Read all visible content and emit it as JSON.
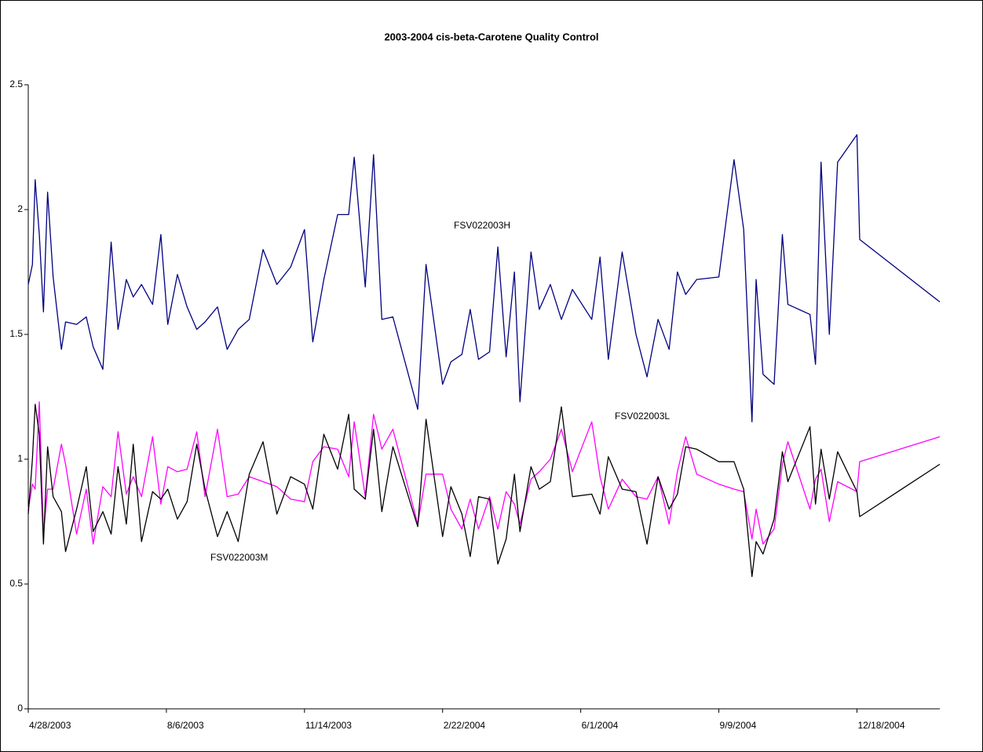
{
  "chart_data": {
    "type": "line",
    "title": "2003-2004 cis-beta-Carotene Quality Control",
    "x": [
      "2003-04-28",
      "2003-05-01",
      "2003-05-03",
      "2003-05-06",
      "2003-05-09",
      "2003-05-12",
      "2003-05-16",
      "2003-05-22",
      "2003-05-25",
      "2003-06-02",
      "2003-06-09",
      "2003-06-14",
      "2003-06-21",
      "2003-06-27",
      "2003-07-02",
      "2003-07-08",
      "2003-07-13",
      "2003-07-19",
      "2003-07-27",
      "2003-08-02",
      "2003-08-07",
      "2003-08-14",
      "2003-08-21",
      "2003-08-28",
      "2003-09-03",
      "2003-09-12",
      "2003-09-19",
      "2003-09-27",
      "2003-10-05",
      "2003-10-15",
      "2003-10-25",
      "2003-11-04",
      "2003-11-14",
      "2003-11-20",
      "2003-11-28",
      "2003-12-08",
      "2003-12-16",
      "2003-12-20",
      "2003-12-28",
      "2004-01-03",
      "2004-01-09",
      "2004-01-17",
      "2004-02-04",
      "2004-02-10",
      "2004-02-22",
      "2004-02-28",
      "2004-03-07",
      "2004-03-13",
      "2004-03-19",
      "2004-03-27",
      "2004-04-02",
      "2004-04-08",
      "2004-04-14",
      "2004-04-18",
      "2004-04-26",
      "2004-05-02",
      "2004-05-10",
      "2004-05-18",
      "2004-05-26",
      "2004-06-09",
      "2004-06-15",
      "2004-06-21",
      "2004-07-01",
      "2004-07-11",
      "2004-07-19",
      "2004-07-27",
      "2004-08-04",
      "2004-08-10",
      "2004-08-16",
      "2004-08-24",
      "2004-09-09",
      "2004-09-20",
      "2004-09-27",
      "2004-10-03",
      "2004-10-06",
      "2004-10-11",
      "2004-10-19",
      "2004-10-25",
      "2004-10-29",
      "2004-11-14",
      "2004-11-18",
      "2004-11-22",
      "2004-11-28",
      "2004-12-04",
      "2004-12-18",
      "2004-12-20",
      "2005-02-16"
    ],
    "series": [
      {
        "name": "FSV022003H",
        "color": "#000080",
        "values": [
          1.7,
          1.78,
          2.12,
          1.9,
          1.59,
          2.07,
          1.73,
          1.44,
          1.55,
          1.54,
          1.57,
          1.45,
          1.36,
          1.87,
          1.52,
          1.72,
          1.65,
          1.7,
          1.62,
          1.9,
          1.54,
          1.74,
          1.61,
          1.52,
          1.55,
          1.61,
          1.44,
          1.52,
          1.56,
          1.84,
          1.7,
          1.77,
          1.92,
          1.47,
          1.72,
          1.98,
          1.98,
          2.21,
          1.69,
          2.22,
          1.56,
          1.57,
          1.2,
          1.78,
          1.3,
          1.39,
          1.42,
          1.6,
          1.4,
          1.43,
          1.85,
          1.41,
          1.75,
          1.23,
          1.83,
          1.6,
          1.7,
          1.56,
          1.68,
          1.56,
          1.81,
          1.4,
          1.83,
          1.5,
          1.33,
          1.56,
          1.44,
          1.75,
          1.66,
          1.72,
          1.73,
          2.2,
          1.92,
          1.15,
          1.72,
          1.34,
          1.3,
          1.9,
          1.62,
          1.58,
          1.38,
          2.19,
          1.5,
          2.19,
          2.3,
          1.88,
          1.63
        ]
      },
      {
        "name": "FSV022003L",
        "color": "#ff00ff",
        "values": [
          0.8,
          0.9,
          0.88,
          1.23,
          0.7,
          0.88,
          0.88,
          1.06,
          0.98,
          0.7,
          0.88,
          0.66,
          0.89,
          0.85,
          1.11,
          0.86,
          0.93,
          0.85,
          1.09,
          0.82,
          0.97,
          0.95,
          0.96,
          1.11,
          0.85,
          1.12,
          0.85,
          0.86,
          0.93,
          0.91,
          0.89,
          0.84,
          0.83,
          0.99,
          1.05,
          1.04,
          0.93,
          1.15,
          0.85,
          1.18,
          1.04,
          1.12,
          0.74,
          0.94,
          0.94,
          0.8,
          0.72,
          0.84,
          0.72,
          0.85,
          0.72,
          0.87,
          0.82,
          0.74,
          0.92,
          0.95,
          1.0,
          1.12,
          0.95,
          1.15,
          0.93,
          0.8,
          0.92,
          0.85,
          0.84,
          0.93,
          0.74,
          0.95,
          1.09,
          0.94,
          0.9,
          0.88,
          0.87,
          0.68,
          0.8,
          0.66,
          0.72,
          0.98,
          1.07,
          0.8,
          0.92,
          0.96,
          0.75,
          0.91,
          0.87,
          0.99,
          1.09
        ]
      },
      {
        "name": "FSV022003M",
        "color": "#000000",
        "values": [
          0.78,
          1.0,
          1.22,
          1.1,
          0.66,
          1.05,
          0.85,
          0.79,
          0.63,
          0.8,
          0.97,
          0.71,
          0.79,
          0.7,
          0.97,
          0.74,
          1.06,
          0.67,
          0.87,
          0.84,
          0.88,
          0.76,
          0.83,
          1.06,
          0.88,
          0.69,
          0.79,
          0.67,
          0.94,
          1.07,
          0.78,
          0.93,
          0.9,
          0.8,
          1.1,
          0.96,
          1.18,
          0.88,
          0.84,
          1.12,
          0.79,
          1.05,
          0.73,
          1.16,
          0.69,
          0.89,
          0.78,
          0.61,
          0.85,
          0.84,
          0.58,
          0.68,
          0.94,
          0.71,
          0.97,
          0.88,
          0.91,
          1.21,
          0.85,
          0.86,
          0.78,
          1.01,
          0.88,
          0.87,
          0.66,
          0.93,
          0.8,
          0.86,
          1.05,
          1.04,
          0.99,
          0.99,
          0.88,
          0.53,
          0.67,
          0.62,
          0.76,
          1.03,
          0.91,
          1.13,
          0.82,
          1.04,
          0.84,
          1.03,
          0.87,
          0.77,
          0.98
        ]
      }
    ],
    "xlim": [
      "2003-04-28",
      "2005-02-16"
    ],
    "xticks": [
      {
        "value": "2003-04-28",
        "label": "4/28/2003"
      },
      {
        "value": "2003-08-06",
        "label": "8/6/2003"
      },
      {
        "value": "2003-11-14",
        "label": "11/14/2003"
      },
      {
        "value": "2004-02-22",
        "label": "2/22/2004"
      },
      {
        "value": "2004-06-01",
        "label": "6/1/2004"
      },
      {
        "value": "2004-09-09",
        "label": "9/9/2004"
      },
      {
        "value": "2004-12-18",
        "label": "12/18/2004"
      }
    ],
    "ylim": [
      0,
      2.5
    ],
    "yticks": [
      0,
      0.5,
      1,
      1.5,
      2,
      2.5
    ],
    "grid": false
  }
}
